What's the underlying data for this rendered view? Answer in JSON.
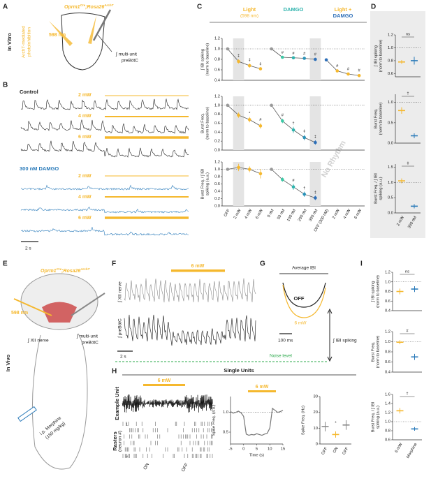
{
  "figure": {
    "panel_labels": [
      "A",
      "B",
      "C",
      "D",
      "E",
      "F",
      "G",
      "H",
      "I"
    ],
    "a": {
      "condition": "In Vitro",
      "genotype": [
        "Oprm1",
        "Cre",
        ";Rosa26",
        "ArchT"
      ],
      "wavelength": "598 nm",
      "method": [
        "ArchT-mediated",
        "photoinhibition"
      ],
      "recording": [
        "∫ multi-unit",
        "preBötC"
      ]
    },
    "b": {
      "control": "Control",
      "powers": [
        "2 mW",
        "4 mW",
        "6 mW"
      ],
      "damgo": "300 nM DAMGO",
      "damgo_powers": [
        "2 mW",
        "4 mW",
        "6 mW"
      ],
      "scale": "2 s"
    },
    "c": {
      "headers": [
        "Light",
        "(598 nm)",
        "DAMGO",
        "Light +",
        "DAMGO"
      ]
    },
    "e": {
      "condition": "In Vivo",
      "genotype": [
        "Oprm1",
        "Cre",
        ";Rosa26",
        "ArchT"
      ],
      "wavelength": "598 nm",
      "nerve": "∫ XII nerve",
      "recording": [
        "∫ multi-unit",
        "preBötC"
      ],
      "drug": [
        "i.p. Morphine",
        "(150 mg/kg)"
      ]
    },
    "f": {
      "power": "6 mW",
      "traces": [
        "∫ XII nerve",
        "∫ preBötC"
      ],
      "scale": "2 s",
      "noise": "Noise level"
    },
    "g": {
      "title": "Average IBI",
      "traces": [
        "OFF",
        "6 mW"
      ],
      "scale": "100 ms",
      "measure": "∫ IBI spiking"
    },
    "h": {
      "title": "Single Units",
      "unit_label": "Example Unit",
      "power": "6 mW",
      "raster_label": [
        "Rasters",
        "(neuron #)"
      ],
      "neurons": [
        "1",
        "6"
      ],
      "epochs": [
        "ON",
        "OFF"
      ],
      "plot_power": "6 mW"
    }
  },
  "chart_data": [
    {
      "type": "line",
      "ylabel": [
        "∫ IBI spiking",
        "(norm to baseline)"
      ],
      "ylim": [
        0.4,
        1.2
      ],
      "yticks": [
        0.4,
        0.6,
        0.8,
        {
          "value": 1,
          "label": "1.0"
        },
        1.2
      ],
      "reference_line": 1,
      "shaded_categories": [
        1,
        8
      ],
      "series": [
        {
          "values": [
            1,
            0.76,
            0.68,
            0.62,
            null,
            null,
            null,
            null,
            null,
            null,
            null,
            null,
            null
          ],
          "errors": [
            null,
            0.04,
            0.04,
            0.03,
            null,
            null,
            null,
            null,
            null,
            null,
            null,
            null,
            null
          ],
          "markers": [
            null,
            "‡",
            "‡",
            "‡",
            null,
            null,
            null,
            null,
            null,
            null,
            null,
            null,
            null
          ],
          "colors": [
            "#999",
            "#f5b82e",
            "#f5b82e",
            "#f5b82e",
            null,
            null,
            null,
            null,
            null,
            null,
            null,
            null,
            null
          ]
        },
        {
          "values": [
            null,
            null,
            null,
            null,
            1,
            0.84,
            0.83,
            0.82,
            0.8,
            null,
            null,
            null,
            null
          ],
          "errors": [
            null,
            null,
            null,
            null,
            null,
            0.02,
            0.02,
            0.02,
            0.03,
            null,
            null,
            null,
            null
          ],
          "markers": [
            null,
            null,
            null,
            null,
            null,
            "#",
            "#",
            "#",
            "#",
            null,
            null,
            null,
            null
          ],
          "colors": [
            null,
            null,
            null,
            null,
            "#999",
            "#3cc9a6",
            "#2fb3ad",
            "#2a92b8",
            "#2d6fb8",
            null,
            null,
            null,
            null
          ]
        },
        {
          "values": [
            null,
            null,
            null,
            null,
            null,
            null,
            null,
            null,
            null,
            0.79,
            0.58,
            0.52,
            0.49
          ],
          "errors": [
            null,
            null,
            null,
            null,
            null,
            null,
            null,
            null,
            null,
            0.03,
            0.03,
            0.03,
            0.03
          ],
          "markers": [
            null,
            null,
            null,
            null,
            null,
            null,
            null,
            null,
            null,
            null,
            "#",
            "#",
            "#"
          ],
          "colors": [
            null,
            null,
            null,
            null,
            null,
            null,
            null,
            null,
            null,
            "#2d6fb8",
            "#f5b82e",
            "#f5b82e",
            "#f5b82e"
          ]
        }
      ]
    },
    {
      "type": "line",
      "ylabel": [
        "Burst Freq.",
        "(norm to baseline)"
      ],
      "ylim": [
        0,
        1.2
      ],
      "yticks": [
        {
          "value": 0,
          "label": "0.0"
        },
        0.2,
        0.4,
        0.6,
        0.8,
        {
          "value": 1,
          "label": "1.0"
        },
        1.2
      ],
      "reference_line": 1,
      "shaded_categories": [
        1,
        8
      ],
      "annotation": "No Rhythm",
      "series": [
        {
          "values": [
            1,
            0.78,
            0.68,
            0.54,
            null,
            null,
            null,
            null,
            null,
            null,
            null,
            null,
            null
          ],
          "errors": [
            null,
            0.06,
            0.06,
            0.06,
            null,
            null,
            null,
            null,
            null,
            null,
            null,
            null,
            null
          ],
          "markers": [
            null,
            null,
            "*",
            "#",
            null,
            null,
            null,
            null,
            null,
            null,
            null,
            null,
            null
          ],
          "colors": [
            "#999",
            "#f5b82e",
            "#f5b82e",
            "#f5b82e",
            null,
            null,
            null,
            null,
            null,
            null,
            null,
            null,
            null
          ]
        },
        {
          "values": [
            null,
            null,
            null,
            null,
            1,
            0.65,
            0.45,
            0.28,
            0.17,
            null,
            null,
            null,
            null
          ],
          "errors": [
            null,
            null,
            null,
            null,
            null,
            0.05,
            0.07,
            0.06,
            0.05,
            null,
            null,
            null,
            null
          ],
          "markers": [
            null,
            null,
            null,
            null,
            null,
            "#",
            "†",
            "‡",
            "‡",
            null,
            null,
            null,
            null
          ],
          "colors": [
            null,
            null,
            null,
            null,
            "#999",
            "#3cc9a6",
            "#2fb3ad",
            "#2a92b8",
            "#2d6fb8",
            null,
            null,
            null,
            null
          ]
        }
      ]
    },
    {
      "type": "line",
      "ylabel": [
        "Burst Freq. / ∫ IBI",
        "spiking (a.u.)"
      ],
      "categories": [
        "OFF",
        "2 mW",
        "4 mW",
        "6 mW",
        "0 nM",
        "50 nM",
        "100 nM",
        "200 nM",
        "300 nM",
        "OFF (300 nM)",
        "2 mW",
        "4 mW",
        "6 mW"
      ],
      "category_colors": [
        "#999",
        "#f5b82e",
        "#f5b82e",
        "#f5b82e",
        "#999",
        "#3cc9a6",
        "#2fb3ad",
        "#2a92b8",
        "#2d6fb8",
        "#2d6fb8",
        "#f5b82e",
        "#f5b82e",
        "#f5b82e"
      ],
      "ylim": [
        0,
        1.2
      ],
      "yticks": [
        {
          "value": 0,
          "label": "0.0"
        },
        0.2,
        0.4,
        0.6,
        0.8,
        {
          "value": 1,
          "label": "1.0"
        },
        1.2
      ],
      "reference_line": 1,
      "shaded_categories": [
        1,
        8
      ],
      "series": [
        {
          "values": [
            1,
            1.05,
            1,
            0.88,
            null,
            null,
            null,
            null,
            null,
            null,
            null,
            null,
            null
          ],
          "errors": [
            null,
            0.1,
            0.08,
            0.13,
            null,
            null,
            null,
            null,
            null,
            null,
            null,
            null,
            null
          ],
          "colors": [
            "#999",
            "#f5b82e",
            "#f5b82e",
            "#f5b82e",
            null,
            null,
            null,
            null,
            null,
            null,
            null,
            null,
            null
          ]
        },
        {
          "values": [
            null,
            null,
            null,
            null,
            1,
            0.72,
            0.52,
            0.32,
            0.22,
            null,
            null,
            null,
            null
          ],
          "errors": [
            null,
            null,
            null,
            null,
            null,
            0.06,
            0.08,
            0.07,
            0.06,
            null,
            null,
            null,
            null
          ],
          "markers": [
            null,
            null,
            null,
            null,
            null,
            null,
            "#",
            "†",
            "‡",
            null,
            null,
            null,
            null
          ],
          "colors": [
            null,
            null,
            null,
            null,
            "#999",
            "#3cc9a6",
            "#2fb3ad",
            "#2a92b8",
            "#2d6fb8",
            null,
            null,
            null,
            null
          ]
        }
      ]
    },
    {
      "type": "dot",
      "ylabel": [
        "∫ IBI spiking",
        "(norm to baseline)"
      ],
      "ylim": [
        0.55,
        1.2
      ],
      "yticks": [
        0.6,
        0.8,
        {
          "value": 1,
          "label": "1.0"
        },
        1.2
      ],
      "reference_line": 1,
      "values": [
        0.78,
        0.8
      ],
      "errors": [
        0.03,
        0.06
      ],
      "colors": [
        "#f5b82e",
        "#2b7bba"
      ],
      "significance": "ns"
    },
    {
      "type": "dot",
      "ylabel": [
        "Burst Freq.",
        "(norm to baseline)"
      ],
      "ylim": [
        0,
        1.2
      ],
      "yticks": [
        {
          "value": 0,
          "label": "0.0"
        },
        0.5,
        {
          "value": 1,
          "label": "1.0"
        }
      ],
      "reference_line": 1,
      "values": [
        0.8,
        0.18
      ],
      "errors": [
        0.08,
        0.06
      ],
      "colors": [
        "#f5b82e",
        "#2b7bba"
      ],
      "significance": "†"
    },
    {
      "type": "dot",
      "ylabel": [
        "Burst Freq. / ∫ IBI",
        "spiking (a.u.)"
      ],
      "categories": [
        "2 mW",
        "300 nM"
      ],
      "category_colors": [
        "#f5b82e",
        "#2b7bba"
      ],
      "ylim": [
        0,
        1.6
      ],
      "yticks": [
        {
          "value": 0,
          "label": "0.0"
        },
        0.5,
        {
          "value": 1,
          "label": "1.0"
        },
        1.5
      ],
      "reference_line": 1,
      "values": [
        1.05,
        0.22
      ],
      "errors": [
        0.08,
        0.07
      ],
      "colors": [
        "#f5b82e",
        "#2b7bba"
      ],
      "significance": "‡"
    },
    {
      "type": "dot",
      "ylabel": [
        "∫ IBI spiking",
        "(norm to baseline)"
      ],
      "ylim": [
        0.4,
        1.2
      ],
      "yticks": [
        0.4,
        0.6,
        0.8,
        {
          "value": 1,
          "label": "1.0"
        },
        1.2
      ],
      "reference_line": 1,
      "values": [
        0.8,
        0.85
      ],
      "errors": [
        0.06,
        0.06
      ],
      "colors": [
        "#f5b82e",
        "#2b7bba"
      ],
      "significance": "ns"
    },
    {
      "type": "dot",
      "ylabel": [
        "Burst Freq.",
        "(norm to baseline)"
      ],
      "ylim": [
        0.4,
        1.2
      ],
      "yticks": [
        0.4,
        0.6,
        0.8,
        {
          "value": 1,
          "label": "1.0"
        },
        1.2
      ],
      "reference_line": 1,
      "values": [
        0.99,
        0.7
      ],
      "errors": [
        0.04,
        0.06
      ],
      "colors": [
        "#f5b82e",
        "#2b7bba"
      ],
      "significance": "#"
    },
    {
      "type": "dot",
      "ylabel": [
        "Burst Freq. / ∫ IBI",
        "spiking (a.u.)"
      ],
      "categories": [
        "6 mW",
        "Morphine"
      ],
      "category_colors": [
        "#f5b82e",
        "#2b7bba"
      ],
      "ylim": [
        0.6,
        1.6
      ],
      "yticks": [
        0.6,
        0.8,
        {
          "value": 1,
          "label": "1.0"
        },
        1.2,
        1.4,
        1.6
      ],
      "reference_line": 1,
      "values": [
        1.24,
        0.84
      ],
      "errors": [
        0.06,
        0.04
      ],
      "colors": [
        "#f5b82e",
        "#2b7bba"
      ],
      "significance": "†"
    },
    {
      "type": "line",
      "ylabel": [
        "Spike Freq. (a.u.)"
      ],
      "xlabel": "Time (s)",
      "x": [
        -5,
        -4,
        -3,
        -2,
        -1,
        0,
        1,
        2,
        3,
        4,
        5,
        6,
        7,
        8,
        9,
        10,
        11,
        12,
        13,
        14,
        15
      ],
      "xlim": [
        -5,
        15
      ],
      "xticks": [
        -5,
        0,
        5,
        10,
        15
      ],
      "ylim": [
        0.2,
        1.4
      ],
      "yticks": [
        0.5,
        {
          "value": 1,
          "label": "1.0"
        }
      ],
      "reference_line": 1,
      "series": [
        {
          "color": "#777",
          "values": [
            1.02,
            0.98,
            1,
            1.03,
            0.99,
            0.9,
            0.45,
            0.42,
            0.44,
            0.43,
            0.46,
            0.44,
            0.42,
            0.45,
            0.47,
            0.6,
            1.1,
            1.05,
            1,
            1.02,
            1.05
          ]
        }
      ]
    },
    {
      "type": "dot",
      "ylabel": [
        "Spike Freq. (Hz)"
      ],
      "categories": [
        "OFF",
        "ON",
        "OFF"
      ],
      "category_colors": [
        "#555",
        "#f5b82e",
        "#555"
      ],
      "ylim": [
        0,
        30
      ],
      "yticks": [
        0,
        10,
        20,
        30
      ],
      "values": [
        11,
        6,
        12
      ],
      "errors": [
        3,
        2,
        3
      ],
      "colors": [
        "#888",
        "#f5b82e",
        "#888"
      ],
      "markers": [
        null,
        "*",
        null
      ]
    }
  ]
}
